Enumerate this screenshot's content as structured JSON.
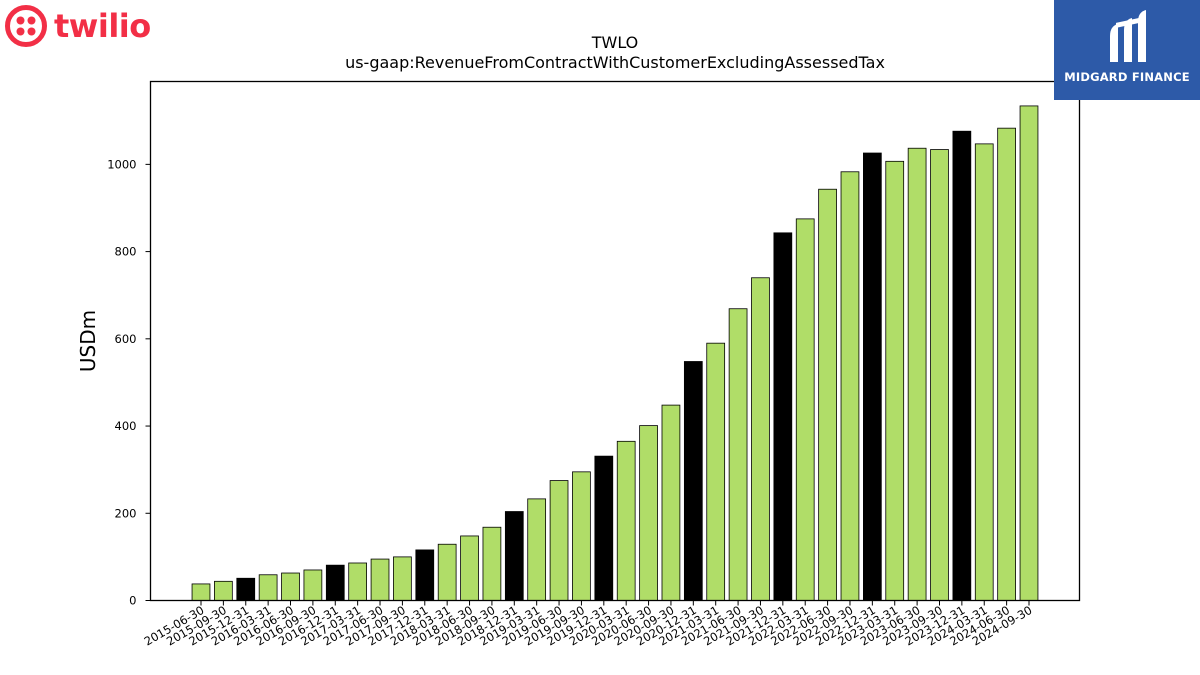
{
  "logos": {
    "left_brand": "twilio",
    "right_brand": "MIDGARD FINANCE",
    "left_color": "#f22f46",
    "right_bg": "#2d5aa8"
  },
  "colors": {
    "regular_bar": "#b0dd68",
    "year_end_bar": "#000000",
    "bar_edge": "#000000"
  },
  "chart_data": {
    "type": "bar",
    "title": "TWLO",
    "subtitle": "us-gaap:RevenueFromContractWithCustomerExcludingAssessedTax",
    "xlabel": "",
    "ylabel": "USDm",
    "ylim": [
      0,
      1190
    ],
    "yticks": [
      0,
      200,
      400,
      600,
      800,
      1000
    ],
    "grid": false,
    "categories": [
      "2015-06-30",
      "2015-09-30",
      "2015-12-31",
      "2016-03-31",
      "2016-06-30",
      "2016-09-30",
      "2016-12-31",
      "2017-03-31",
      "2017-06-30",
      "2017-09-30",
      "2017-12-31",
      "2018-03-31",
      "2018-06-30",
      "2018-09-30",
      "2018-12-31",
      "2019-03-31",
      "2019-06-30",
      "2019-09-30",
      "2019-12-31",
      "2020-03-31",
      "2020-06-30",
      "2020-09-30",
      "2020-12-31",
      "2021-03-31",
      "2021-06-30",
      "2021-09-30",
      "2021-12-31",
      "2022-03-31",
      "2022-06-30",
      "2022-09-30",
      "2022-12-31",
      "2023-03-31",
      "2023-06-30",
      "2023-09-30",
      "2023-12-31",
      "2024-03-31",
      "2024-06-30",
      "2024-09-30"
    ],
    "values": [
      38,
      44,
      51,
      59,
      63,
      70,
      81,
      86,
      95,
      100,
      116,
      129,
      148,
      168,
      204,
      233,
      275,
      295,
      331,
      365,
      401,
      448,
      548,
      590,
      669,
      740,
      843,
      875,
      943,
      983,
      1026,
      1007,
      1037,
      1034,
      1076,
      1047,
      1083,
      1134
    ],
    "highlight_year_end": true
  }
}
